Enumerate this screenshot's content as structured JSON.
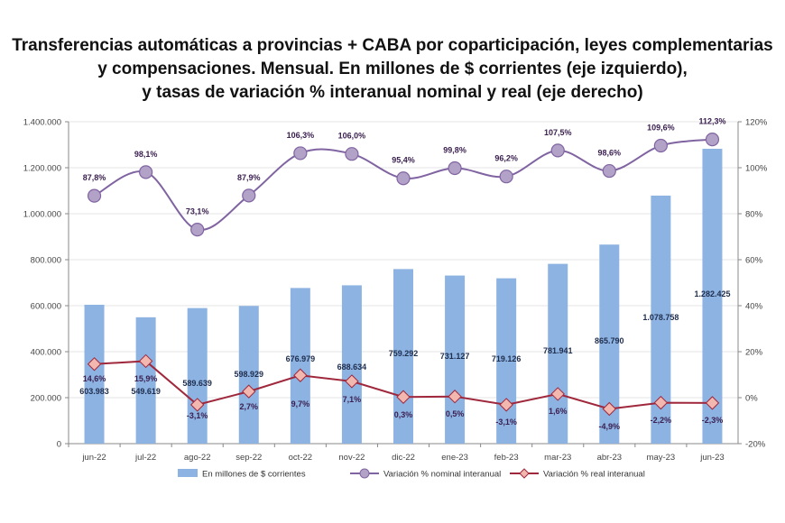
{
  "chart_data": {
    "type": "bar+line",
    "title_lines": [
      "Transferencias automáticas a provincias + CABA por coparticipación, leyes complementarias",
      "y compensaciones. Mensual. En millones de $ corrientes (eje izquierdo),",
      "y tasas de variación % interanual nominal y real (eje derecho)"
    ],
    "categories": [
      "jun-22",
      "jul-22",
      "ago-22",
      "sep-22",
      "oct-22",
      "nov-22",
      "dic-22",
      "ene-23",
      "feb-23",
      "mar-23",
      "abr-23",
      "may-23",
      "jun-23"
    ],
    "left_axis": {
      "range": [
        0,
        1400000
      ],
      "ticks": [
        "0",
        "200.000",
        "400.000",
        "600.000",
        "800.000",
        "1.000.000",
        "1.200.000",
        "1.400.000"
      ]
    },
    "right_axis": {
      "range": [
        -20,
        120
      ],
      "ticks": [
        "-20%",
        "0%",
        "20%",
        "40%",
        "60%",
        "80%",
        "100%",
        "120%"
      ]
    },
    "grid": true,
    "legend_position": "bottom",
    "series": [
      {
        "name": "En millones de $ corrientes",
        "type": "bar",
        "axis": "left",
        "color": "#8db3e2",
        "values": [
          603983,
          549619,
          589639,
          598929,
          676979,
          688634,
          759292,
          731127,
          719126,
          781941,
          865790,
          1078758,
          1282425
        ],
        "labels": [
          "603.983",
          "549.619",
          "589.639",
          "598.929",
          "676.979",
          "688.634",
          "759.292",
          "731.127",
          "719.126",
          "781.941",
          "865.790",
          "1.078.758",
          "1.282.425"
        ]
      },
      {
        "name": "Variación % nominal interanual",
        "type": "line",
        "axis": "right",
        "color": "#8064a2",
        "marker_fill": "#b3a2c7",
        "values": [
          87.8,
          98.1,
          73.1,
          87.9,
          106.3,
          106.0,
          95.4,
          99.8,
          96.2,
          107.5,
          98.6,
          109.6,
          112.3
        ],
        "labels": [
          "87,8%",
          "98,1%",
          "73,1%",
          "87,9%",
          "106,3%",
          "106,0%",
          "95,4%",
          "99,8%",
          "96,2%",
          "107,5%",
          "98,6%",
          "109,6%",
          "112,3%"
        ]
      },
      {
        "name": "Variación % real interanual",
        "type": "line",
        "axis": "right",
        "color": "#a0283c",
        "marker_fill": "#f2b8b0",
        "values": [
          14.6,
          15.9,
          -3.1,
          2.7,
          9.7,
          7.1,
          0.3,
          0.5,
          -3.1,
          1.6,
          -4.9,
          -2.2,
          -2.3
        ],
        "labels": [
          "14,6%",
          "15,9%",
          "-3,1%",
          "2,7%",
          "9,7%",
          "7,1%",
          "0,3%",
          "0,5%",
          "-3,1%",
          "1,6%",
          "-4,9%",
          "-2,2%",
          "-2,3%"
        ]
      }
    ]
  }
}
